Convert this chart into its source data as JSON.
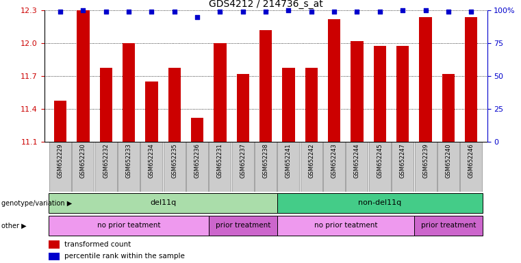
{
  "title": "GDS4212 / 214736_s_at",
  "samples": [
    "GSM652229",
    "GSM652230",
    "GSM652232",
    "GSM652233",
    "GSM652234",
    "GSM652235",
    "GSM652236",
    "GSM652231",
    "GSM652237",
    "GSM652238",
    "GSM652241",
    "GSM652242",
    "GSM652243",
    "GSM652244",
    "GSM652245",
    "GSM652247",
    "GSM652239",
    "GSM652240",
    "GSM652246"
  ],
  "bar_values": [
    11.48,
    12.3,
    11.78,
    12.0,
    11.65,
    11.78,
    11.32,
    12.0,
    11.72,
    12.12,
    11.78,
    11.78,
    12.22,
    12.02,
    11.98,
    11.98,
    12.24,
    11.72,
    12.24
  ],
  "percentile_values": [
    99,
    100,
    99,
    99,
    99,
    99,
    95,
    99,
    99,
    99,
    100,
    99,
    99,
    99,
    99,
    100,
    100,
    99,
    99
  ],
  "bar_color": "#cc0000",
  "dot_color": "#0000cc",
  "ymin": 11.1,
  "ymax": 12.3,
  "yticks": [
    11.1,
    11.4,
    11.7,
    12.0,
    12.3
  ],
  "grid_values": [
    11.4,
    11.7,
    12.0,
    12.3
  ],
  "yright_ticks": [
    0,
    25,
    50,
    75,
    100
  ],
  "yright_labels": [
    "0",
    "25",
    "50",
    "75",
    "100%"
  ],
  "genotype_groups": [
    {
      "label": "del11q",
      "start": 0,
      "end": 10,
      "color": "#aaddaa"
    },
    {
      "label": "non-del11q",
      "start": 10,
      "end": 19,
      "color": "#44cc88"
    }
  ],
  "treatment_groups": [
    {
      "label": "no prior teatment",
      "start": 0,
      "end": 7,
      "color": "#ee99ee"
    },
    {
      "label": "prior treatment",
      "start": 7,
      "end": 10,
      "color": "#cc66cc"
    },
    {
      "label": "no prior teatment",
      "start": 10,
      "end": 16,
      "color": "#ee99ee"
    },
    {
      "label": "prior treatment",
      "start": 16,
      "end": 19,
      "color": "#cc66cc"
    }
  ],
  "genotype_label": "genotype/variation",
  "other_label": "other",
  "legend_bar_label": "transformed count",
  "legend_dot_label": "percentile rank within the sample",
  "tick_color_left": "#cc0000",
  "tick_color_right": "#0000cc",
  "xticklabel_bg": "#cccccc"
}
